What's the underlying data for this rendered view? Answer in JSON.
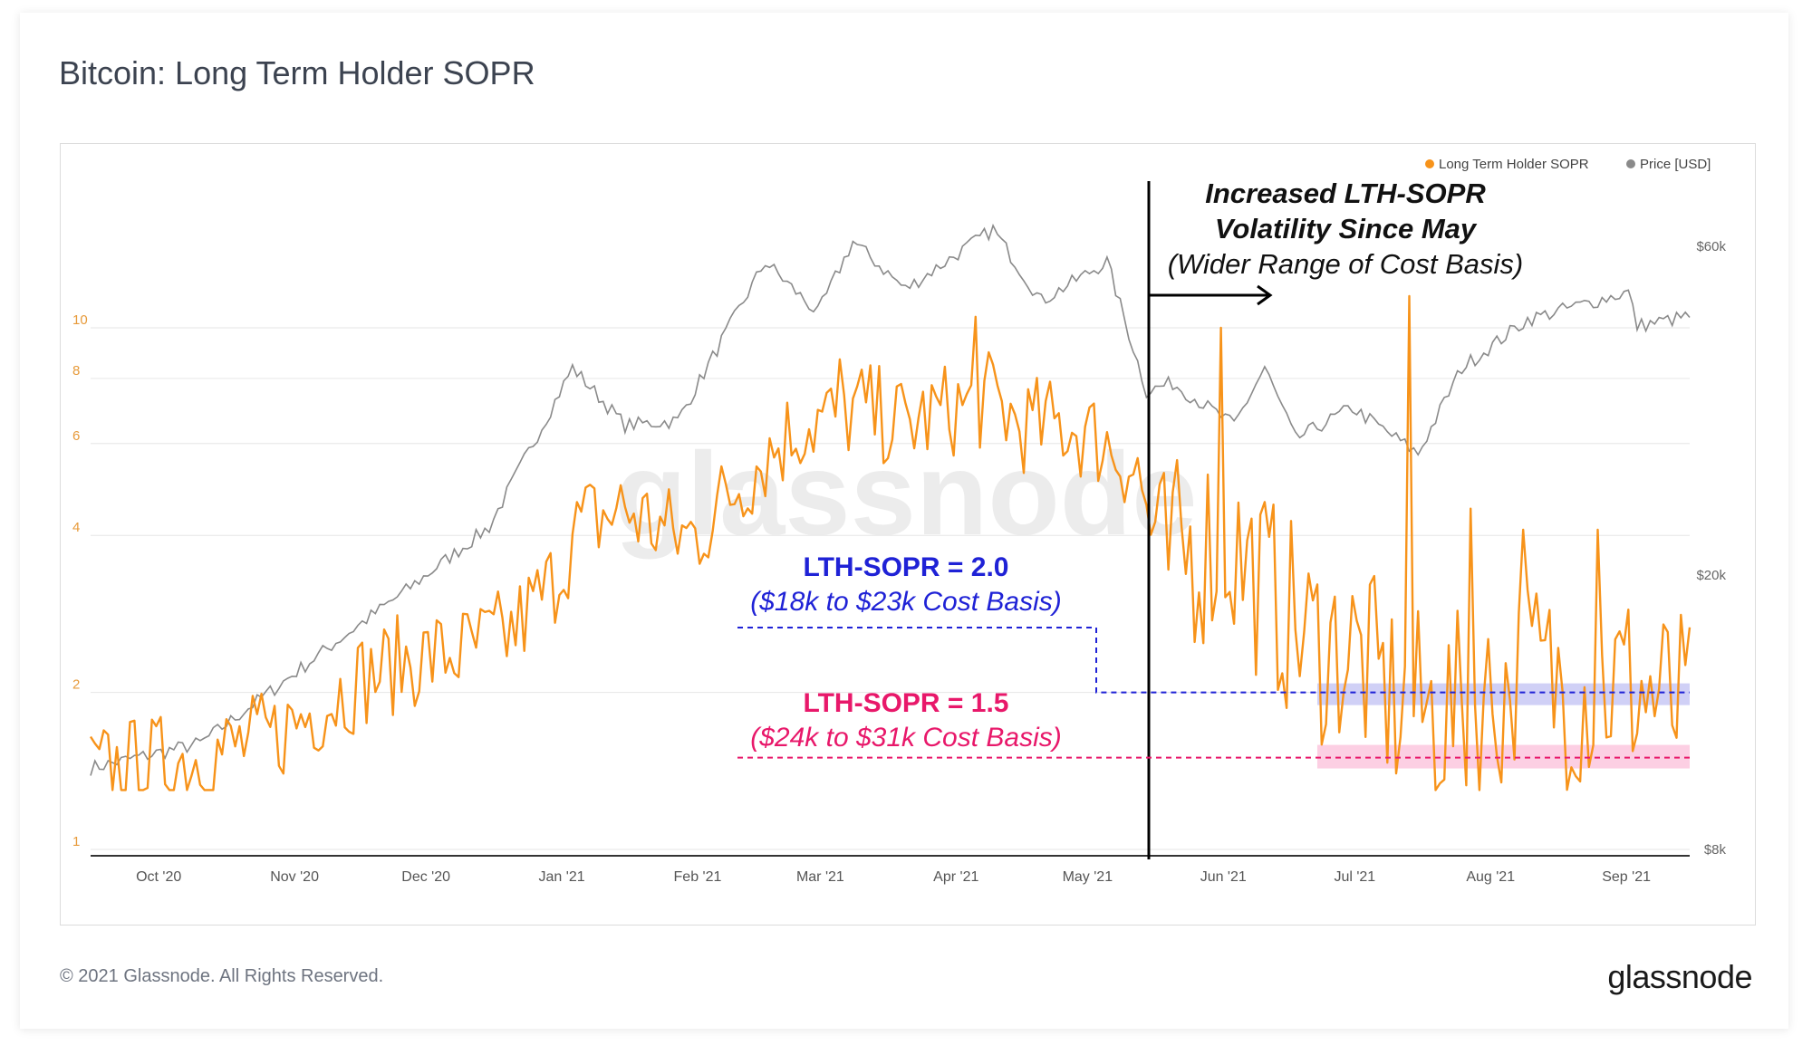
{
  "title": "Bitcoin: Long Term Holder SOPR",
  "footer": "© 2021 Glassnode. All Rights Reserved.",
  "brand": "glassnode",
  "watermark": "glassnode",
  "annotations": {
    "volatility": {
      "line1": "Increased LTH-SOPR",
      "line2": "Volatility Since May",
      "line3": "(Wider Range of Cost Basis)"
    },
    "level_2_0": {
      "label": "LTH-SOPR = 2.0",
      "sub": "($18k to $23k Cost Basis)",
      "color": "#1f22d6"
    },
    "level_1_5": {
      "label": "LTH-SOPR = 1.5",
      "sub": "($24k to $31k Cost Basis)",
      "color": "#e8186a"
    }
  },
  "colors": {
    "sopr": "#f7931a",
    "price": "#8a8a8a",
    "band_blue": "#c8c8f5",
    "band_pink": "#fbc7de"
  },
  "chart_data": {
    "type": "line",
    "x_ticks": [
      "Oct '20",
      "Nov '20",
      "Dec '20",
      "Jan '21",
      "Feb '21",
      "Mar '21",
      "Apr '21",
      "May '21",
      "Jun '21",
      "Jul '21",
      "Aug '21",
      "Sep '21"
    ],
    "left_axis": {
      "scale": "log",
      "ticks": [
        "1",
        "2",
        "4",
        "6",
        "8",
        "10"
      ]
    },
    "right_axis": {
      "scale": "log",
      "ticks": [
        "$8k",
        "$20k",
        "$60k"
      ]
    },
    "legend": [
      "Long Term Holder SOPR",
      "Price [USD]"
    ],
    "legend_position": "top-right",
    "series": [
      {
        "name": "Long Term Holder SOPR",
        "axis": "left",
        "points": [
          [
            "2020-09-20",
            1.4
          ],
          [
            "2020-10-01",
            1.45
          ],
          [
            "2020-10-15",
            1.5
          ],
          [
            "2020-11-01",
            1.65
          ],
          [
            "2020-11-10",
            1.85
          ],
          [
            "2020-11-20",
            2.1
          ],
          [
            "2020-12-01",
            2.3
          ],
          [
            "2020-12-15",
            2.4
          ],
          [
            "2020-12-25",
            2.6
          ],
          [
            "2021-01-03",
            3.2
          ],
          [
            "2021-01-10",
            4.2
          ],
          [
            "2021-01-20",
            4.5
          ],
          [
            "2021-01-31",
            4.0
          ],
          [
            "2021-02-05",
            4.0
          ],
          [
            "2021-02-10",
            4.5
          ],
          [
            "2021-02-20",
            5.6
          ],
          [
            "2021-03-01",
            6.5
          ],
          [
            "2021-03-15",
            7.0
          ],
          [
            "2021-03-25",
            6.5
          ],
          [
            "2021-04-05",
            7.0
          ],
          [
            "2021-04-14",
            7.3
          ],
          [
            "2021-04-20",
            6.5
          ],
          [
            "2021-05-01",
            6.5
          ],
          [
            "2021-05-10",
            6.0
          ],
          [
            "2021-05-17",
            5.3
          ],
          [
            "2021-05-22",
            3.5
          ],
          [
            "2021-06-01",
            3.8
          ],
          [
            "2021-06-05",
            4.0
          ],
          [
            "2021-06-15",
            3.2
          ],
          [
            "2021-06-25",
            2.5
          ],
          [
            "2021-07-05",
            2.4
          ],
          [
            "2021-07-15",
            1.9
          ],
          [
            "2021-07-25",
            1.8
          ],
          [
            "2021-08-05",
            1.9
          ],
          [
            "2021-08-15",
            2.2
          ],
          [
            "2021-08-25",
            2.0
          ],
          [
            "2021-09-05",
            2.1
          ],
          [
            "2021-09-15",
            1.9
          ],
          [
            "2021-09-20",
            1.8
          ]
        ],
        "spikes": [
          [
            "2021-03-10",
            8.7
          ],
          [
            "2021-04-10",
            10.5
          ],
          [
            "2021-06-05",
            10.0
          ],
          [
            "2021-07-18",
            11.5
          ],
          [
            "2021-08-01",
            4.5
          ],
          [
            "2021-08-13",
            4.1
          ],
          [
            "2021-08-30",
            4.1
          ]
        ],
        "range": [
          1.3,
          11.5
        ]
      },
      {
        "name": "Price [USD]",
        "axis": "right",
        "points": [
          [
            "2020-09-20",
            10500
          ],
          [
            "2020-10-15",
            11400
          ],
          [
            "2020-11-01",
            13700
          ],
          [
            "2020-11-15",
            16000
          ],
          [
            "2020-12-01",
            19000
          ],
          [
            "2020-12-20",
            23500
          ],
          [
            "2021-01-08",
            40000
          ],
          [
            "2021-01-20",
            33000
          ],
          [
            "2021-02-01",
            33500
          ],
          [
            "2021-02-21",
            57000
          ],
          [
            "2021-03-05",
            48000
          ],
          [
            "2021-03-13",
            61000
          ],
          [
            "2021-03-25",
            52000
          ],
          [
            "2021-04-14",
            63500
          ],
          [
            "2021-04-25",
            50000
          ],
          [
            "2021-05-10",
            57000
          ],
          [
            "2021-05-19",
            37000
          ],
          [
            "2021-05-25",
            38000
          ],
          [
            "2021-06-08",
            33000
          ],
          [
            "2021-06-15",
            40000
          ],
          [
            "2021-06-22",
            31500
          ],
          [
            "2021-07-05",
            35000
          ],
          [
            "2021-07-20",
            30000
          ],
          [
            "2021-07-30",
            40000
          ],
          [
            "2021-08-14",
            47000
          ],
          [
            "2021-09-06",
            51500
          ],
          [
            "2021-09-08",
            46000
          ],
          [
            "2021-09-20",
            47500
          ]
        ]
      }
    ]
  }
}
